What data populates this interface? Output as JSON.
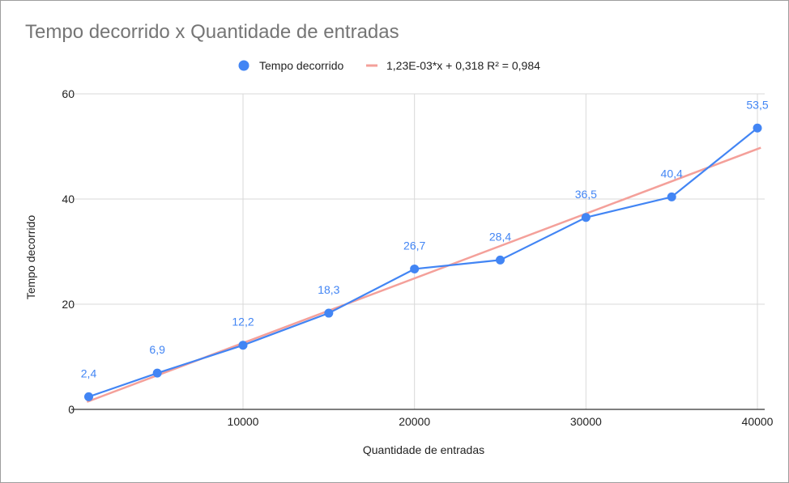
{
  "chart_data": {
    "type": "scatter",
    "title": "Tempo decorrido x Quantidade de entradas",
    "xlabel": "Quantidade de entradas",
    "ylabel": "Tempo decorrido",
    "xlim": [
      0,
      40000
    ],
    "ylim": [
      0,
      60
    ],
    "x_ticks": [
      10000,
      20000,
      30000,
      40000
    ],
    "y_ticks": [
      0,
      20,
      40,
      60
    ],
    "grid": true,
    "legend_position": "top",
    "series": [
      {
        "name": "Tempo decorrido",
        "color": "#4285f4",
        "style": "line-markers",
        "x": [
          1000,
          5000,
          10000,
          15000,
          20000,
          25000,
          30000,
          35000,
          40000
        ],
        "y": [
          2.4,
          6.9,
          12.2,
          18.3,
          26.7,
          28.4,
          36.5,
          40.4,
          53.5
        ],
        "labels": [
          "2,4",
          "6,9",
          "12,2",
          "18,3",
          "26,7",
          "28,4",
          "36,5",
          "40,4",
          "53,5"
        ]
      }
    ],
    "trendline": {
      "name": "1,23E-03*x + 0,318 R² = 0,984",
      "color": "#f4a09a",
      "slope": 0.00123,
      "intercept": 0.318,
      "x_range": [
        0,
        40000
      ]
    }
  }
}
